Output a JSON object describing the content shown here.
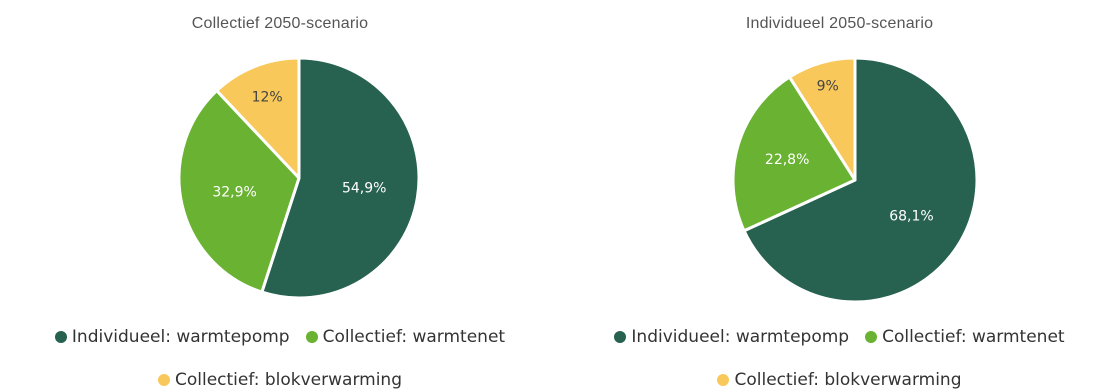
{
  "colors": {
    "individueel_warmtepomp": "#276150",
    "collectief_warmtenet": "#69b232",
    "collectief_blokverwarming": "#f8c85a",
    "label_on_dark": "#ffffff",
    "label_on_light": "#444444"
  },
  "legend": [
    {
      "label": "Individueel: warmtepomp",
      "color": "#276150"
    },
    {
      "label": "Collectief: warmtenet",
      "color": "#69b232"
    },
    {
      "label": "Collectief: blokverwarming",
      "color": "#f8c85a"
    }
  ],
  "chart_data": [
    {
      "type": "pie",
      "title": "Collectief 2050-scenario",
      "slices": [
        {
          "name": "Individueel: warmtepomp",
          "value": 54.9,
          "label": "54,9%"
        },
        {
          "name": "Collectief: warmtenet",
          "value": 32.9,
          "label": "32,9%"
        },
        {
          "name": "Collectief: blokverwarming",
          "value": 12,
          "label": "12%"
        }
      ],
      "legend_position": "bottom"
    },
    {
      "type": "pie",
      "title": "Individueel 2050-scenario",
      "slices": [
        {
          "name": "Individueel: warmtepomp",
          "value": 68.1,
          "label": "68,1%"
        },
        {
          "name": "Collectief: warmtenet",
          "value": 22.8,
          "label": "22,8%"
        },
        {
          "name": "Collectief: blokverwarming",
          "value": 9,
          "label": "9%"
        }
      ],
      "legend_position": "bottom"
    }
  ]
}
